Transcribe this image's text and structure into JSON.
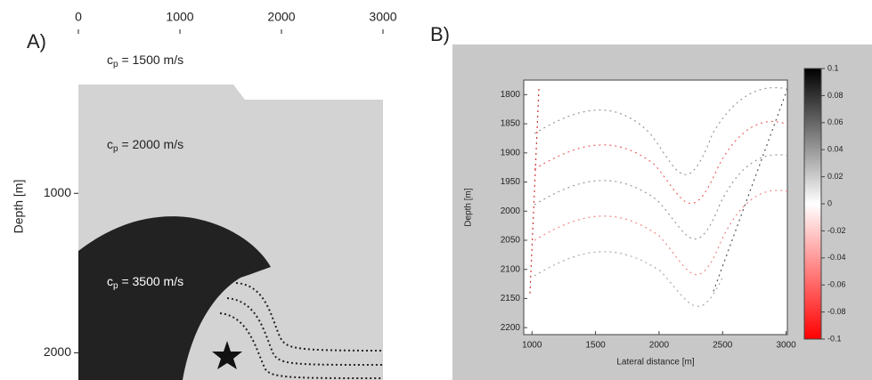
{
  "panel_a": {
    "label": "A)",
    "xticks": [
      0,
      1000,
      2000,
      3000
    ],
    "xlim": [
      0,
      3000
    ],
    "yticks": [
      1000,
      2000
    ],
    "ylim": [
      0,
      2170
    ],
    "ylabel": "Depth [m]",
    "layers": [
      {
        "symbol": "c",
        "subscript": "p",
        "text": " = 1500 m/s"
      },
      {
        "symbol": "c",
        "subscript": "p",
        "text": " = 2000 m/s"
      },
      {
        "symbol": "c",
        "subscript": "p",
        "text": " = 3500 m/s"
      }
    ]
  },
  "panel_b": {
    "label": "B)",
    "xticks": [
      1000,
      1500,
      2000,
      2500,
      3000
    ],
    "xlim": [
      935,
      3010
    ],
    "yticks": [
      1800,
      1850,
      1900,
      1950,
      2000,
      2050,
      2100,
      2150,
      2200
    ],
    "ylim": [
      1775,
      2212
    ],
    "xlabel": "Lateral distance [m]",
    "ylabel": "Depth [m]",
    "colorbar": {
      "lim": [
        -0.1,
        0.1
      ],
      "ticks": [
        0.1,
        0.08,
        0.06,
        0.04,
        0.02,
        0,
        -0.02,
        -0.04,
        -0.06,
        -0.08,
        -0.1
      ]
    }
  }
}
